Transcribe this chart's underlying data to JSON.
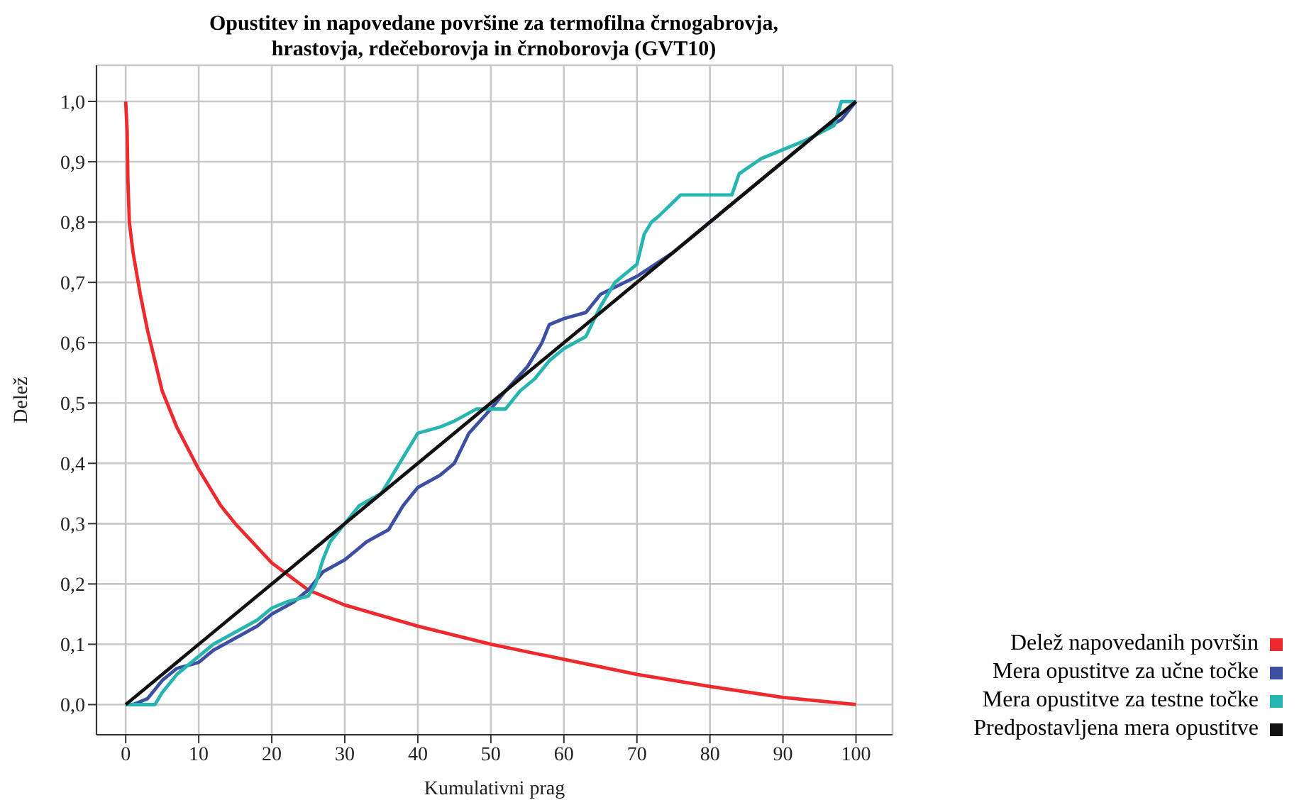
{
  "chart_data": {
    "type": "line",
    "title": "Opustitev in napovedane površine za termofilna črnogabrovja,\nhrastovja, rdečeborovja in črnoborovja (GVT10)",
    "xlabel": "Kumulativni prag",
    "ylabel": "Delež",
    "xlim": [
      -4,
      105
    ],
    "xticks": [
      0,
      10,
      20,
      30,
      40,
      50,
      60,
      70,
      80,
      90,
      100
    ],
    "ylim": [
      -0.05,
      1.06
    ],
    "yticks": [
      {
        "value": 0,
        "label": "0,0"
      },
      {
        "value": 0.1,
        "label": "0,1"
      },
      {
        "value": 0.2,
        "label": "0,2"
      },
      {
        "value": 0.3,
        "label": "0,3"
      },
      {
        "value": 0.4,
        "label": "0,4"
      },
      {
        "value": 0.5,
        "label": "0,5"
      },
      {
        "value": 0.6,
        "label": "0,6"
      },
      {
        "value": 0.7,
        "label": "0,7"
      },
      {
        "value": 0.8,
        "label": "0,8"
      },
      {
        "value": 0.9,
        "label": "0,9"
      },
      {
        "value": 1,
        "label": "1,0"
      }
    ],
    "grid": true,
    "legend": "right",
    "marker": "none",
    "line_style": "solid",
    "series": [
      {
        "name": "Delež napovedanih površin",
        "color": "#ee2a2e",
        "x": [
          0,
          0.2,
          0.3,
          0.5,
          1,
          2,
          3,
          5,
          7,
          10,
          13,
          15,
          20,
          25,
          30,
          40,
          50,
          60,
          70,
          80,
          90,
          100
        ],
        "values": [
          1,
          0.95,
          0.87,
          0.8,
          0.75,
          0.68,
          0.62,
          0.52,
          0.46,
          0.39,
          0.33,
          0.3,
          0.235,
          0.19,
          0.165,
          0.13,
          0.1,
          0.075,
          0.05,
          0.03,
          0.012,
          0
        ]
      },
      {
        "name": "Mera opustitve za učne točke",
        "color": "#3c4fa3",
        "x": [
          0,
          1,
          3,
          5,
          7,
          10,
          12,
          15,
          18,
          20,
          23,
          25,
          27,
          30,
          33,
          36,
          38,
          40,
          43,
          45,
          47,
          50,
          52,
          55,
          57,
          58,
          60,
          63,
          65,
          70,
          75,
          80,
          85,
          90,
          95,
          98,
          100
        ],
        "values": [
          0,
          0,
          0.01,
          0.04,
          0.06,
          0.07,
          0.09,
          0.11,
          0.13,
          0.15,
          0.17,
          0.19,
          0.22,
          0.24,
          0.27,
          0.29,
          0.33,
          0.36,
          0.38,
          0.4,
          0.45,
          0.49,
          0.52,
          0.56,
          0.6,
          0.63,
          0.64,
          0.65,
          0.68,
          0.71,
          0.75,
          0.8,
          0.85,
          0.9,
          0.95,
          0.97,
          1
        ]
      },
      {
        "name": "Mera opustitve za testne točke",
        "color": "#26b5b0",
        "x": [
          0,
          4,
          5,
          7,
          9,
          10,
          12,
          15,
          18,
          20,
          22,
          25,
          26,
          27,
          28,
          30,
          32,
          35,
          37,
          40,
          43,
          45,
          48,
          52,
          54,
          56,
          58,
          60,
          63,
          65,
          67,
          70,
          71,
          72,
          73,
          76,
          83,
          84,
          87,
          90,
          93,
          97,
          98,
          100
        ],
        "values": [
          0,
          0,
          0.02,
          0.05,
          0.07,
          0.08,
          0.1,
          0.12,
          0.14,
          0.16,
          0.17,
          0.18,
          0.2,
          0.24,
          0.27,
          0.3,
          0.33,
          0.35,
          0.39,
          0.45,
          0.46,
          0.47,
          0.49,
          0.49,
          0.52,
          0.54,
          0.57,
          0.59,
          0.61,
          0.66,
          0.7,
          0.73,
          0.78,
          0.8,
          0.81,
          0.845,
          0.845,
          0.88,
          0.905,
          0.92,
          0.935,
          0.96,
          1,
          1
        ]
      },
      {
        "name": "Predpostavljena mera opustitve",
        "color": "#111111",
        "x": [
          0,
          100
        ],
        "values": [
          0,
          1
        ]
      }
    ]
  }
}
